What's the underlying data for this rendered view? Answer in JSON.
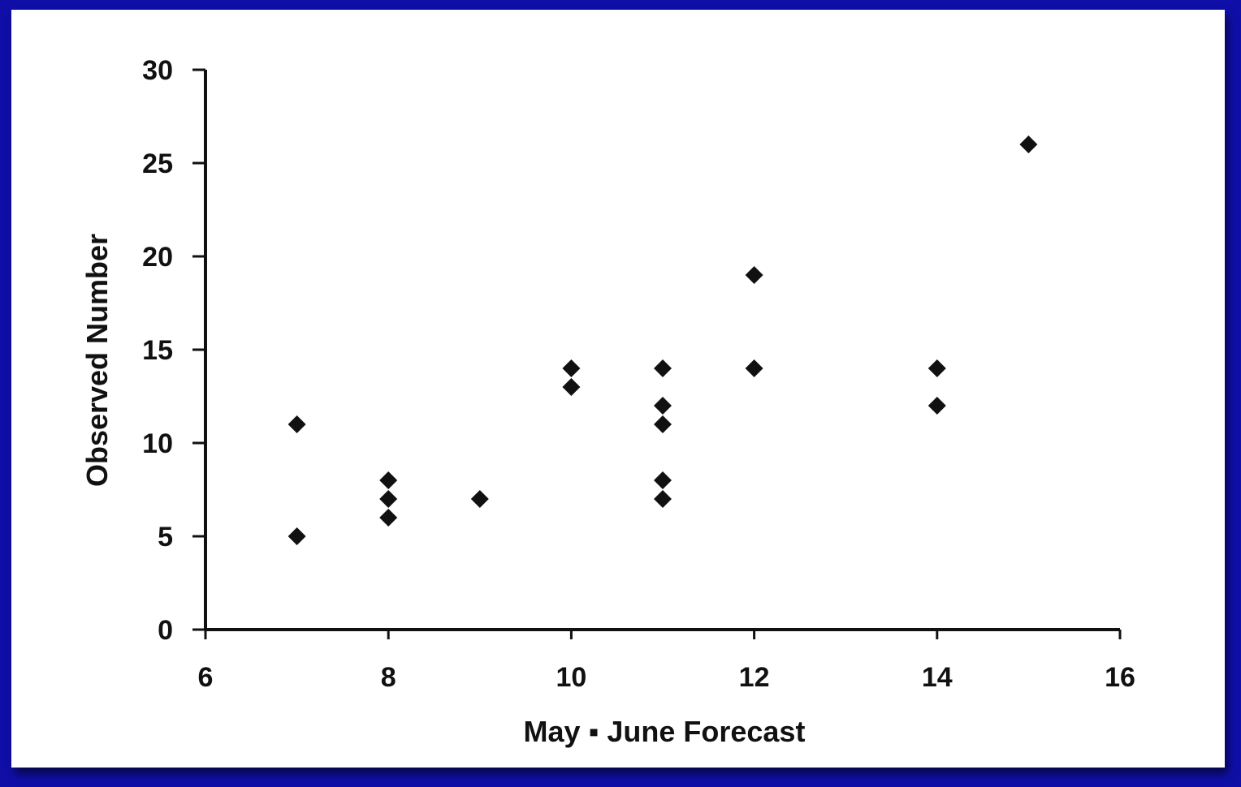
{
  "colors": {
    "frame": "#0f0fa8",
    "panel": "#ffffff",
    "ink": "#111111"
  },
  "chart_data": {
    "type": "scatter",
    "title": "",
    "xlabel": "May ▪ June Forecast",
    "ylabel": "Observed Number",
    "xlim": [
      6,
      16
    ],
    "ylim": [
      0,
      30
    ],
    "x_ticks": [
      6,
      8,
      10,
      12,
      14,
      16
    ],
    "y_ticks": [
      0,
      5,
      10,
      15,
      20,
      25,
      30
    ],
    "grid": false,
    "legend": "none",
    "marker": "diamond",
    "points": [
      {
        "x": 7,
        "y": 11
      },
      {
        "x": 7,
        "y": 5
      },
      {
        "x": 8,
        "y": 8
      },
      {
        "x": 8,
        "y": 7
      },
      {
        "x": 8,
        "y": 6
      },
      {
        "x": 9,
        "y": 7
      },
      {
        "x": 10,
        "y": 14
      },
      {
        "x": 10,
        "y": 13
      },
      {
        "x": 11,
        "y": 14
      },
      {
        "x": 11,
        "y": 12
      },
      {
        "x": 11,
        "y": 11
      },
      {
        "x": 11,
        "y": 8
      },
      {
        "x": 11,
        "y": 7
      },
      {
        "x": 12,
        "y": 19
      },
      {
        "x": 12,
        "y": 14
      },
      {
        "x": 14,
        "y": 14
      },
      {
        "x": 14,
        "y": 12
      },
      {
        "x": 15,
        "y": 26
      }
    ]
  }
}
